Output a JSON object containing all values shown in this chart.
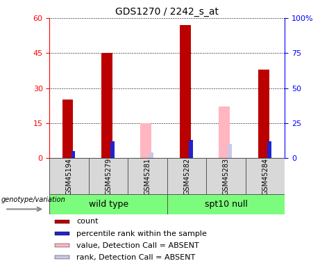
{
  "title": "GDS1270 / 2242_s_at",
  "samples": [
    "GSM45194",
    "GSM45279",
    "GSM45281",
    "GSM45282",
    "GSM45283",
    "GSM45284"
  ],
  "group_labels": [
    "wild type",
    "spt10 null"
  ],
  "count_values": [
    25,
    45,
    0,
    57,
    0,
    38
  ],
  "rank_values": [
    5,
    12,
    0,
    13,
    0,
    12
  ],
  "absent_value_values": [
    0,
    0,
    15,
    0,
    22,
    0
  ],
  "absent_rank_values": [
    0,
    0,
    4,
    0,
    10,
    0
  ],
  "count_color": "#bb0000",
  "rank_color": "#2222cc",
  "absent_value_color": "#ffb6c1",
  "absent_rank_color": "#c8c8e8",
  "ylim_left": [
    0,
    60
  ],
  "ylim_right": [
    0,
    100
  ],
  "yticks_left": [
    0,
    15,
    30,
    45,
    60
  ],
  "yticks_right": [
    0,
    25,
    50,
    75,
    100
  ],
  "yticklabels_right": [
    "0",
    "25",
    "50",
    "75",
    "100%"
  ],
  "legend_items": [
    {
      "label": "count",
      "color": "#bb0000"
    },
    {
      "label": "percentile rank within the sample",
      "color": "#2222cc"
    },
    {
      "label": "value, Detection Call = ABSENT",
      "color": "#ffb6c1"
    },
    {
      "label": "rank, Detection Call = ABSENT",
      "color": "#c8c8e8"
    }
  ],
  "genotype_label": "genotype/variation",
  "title_fontsize": 10,
  "tick_fontsize": 8,
  "legend_fontsize": 8,
  "sample_fontsize": 7,
  "group_fontsize": 9
}
